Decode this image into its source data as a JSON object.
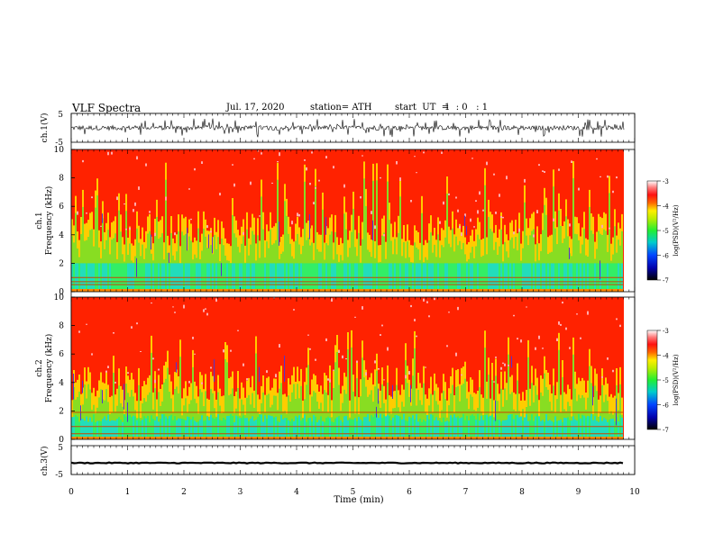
{
  "header": {
    "title": "VLF  Spectra",
    "date": "Jul.  17,  2020",
    "station": "station= ATH",
    "start_label": "start  UT  =",
    "start_value": "1  : 0   : 1"
  },
  "colors": {
    "waveform": "#000000",
    "spectro_red": "#ff1a00",
    "spectro_yellow": "#ffe000",
    "spectro_green": "#33ee55",
    "spectro_cyan": "#22ddcc",
    "spectro_blue": "#0033ff",
    "harmonic_line": "#cc4400"
  },
  "chart_data": [
    {
      "type": "line",
      "panel": "ch1-waveform",
      "ylabel": "ch.1(V)",
      "ylim": [
        -5,
        5
      ],
      "yticks": [
        "5",
        "-5"
      ],
      "xlim": [
        0,
        10
      ],
      "description_series": "noisy waveform centred near 0 V with spikes to about ±3 V"
    },
    {
      "type": "heatmap",
      "panel": "ch1-spectrogram",
      "ylabel": "ch.1\nFrequency  (kHz)",
      "ylabel_lines": [
        "ch.1",
        "Frequency  (kHz)"
      ],
      "ylim": [
        0,
        10
      ],
      "yticks": [
        "0",
        "2",
        "4",
        "6",
        "8",
        "10"
      ],
      "xlim": [
        0,
        10
      ],
      "colorbar": {
        "label": "log(PSD)(V²/Hz)",
        "range": [
          -7,
          -3
        ],
        "ticks": [
          "-3",
          "-4",
          "-5",
          "-6",
          "-7"
        ]
      }
    },
    {
      "type": "heatmap",
      "panel": "ch2-spectrogram",
      "ylabel": "ch.2\nFrequency  (kHz)",
      "ylabel_lines": [
        "ch.2",
        "Frequency  (kHz)"
      ],
      "ylim": [
        0,
        10
      ],
      "yticks": [
        "0",
        "2",
        "4",
        "6",
        "8",
        "10"
      ],
      "xlim": [
        0,
        10
      ],
      "colorbar": {
        "label": "log(PSD)(V²/Hz)",
        "range": [
          -7,
          -3
        ],
        "ticks": [
          "-3",
          "-4",
          "-5",
          "-6",
          "-7"
        ]
      }
    },
    {
      "type": "line",
      "panel": "ch3-waveform",
      "ylabel": "ch.3(V)",
      "ylim": [
        -5,
        5
      ],
      "yticks": [
        "5",
        "-5"
      ],
      "xlim": [
        0,
        10
      ],
      "xlabel": "Time  (min)",
      "xticks": [
        "0",
        "1",
        "2",
        "3",
        "4",
        "5",
        "6",
        "7",
        "8",
        "9",
        "10"
      ],
      "description_series": "nearly flat trace at about -1 V"
    }
  ]
}
